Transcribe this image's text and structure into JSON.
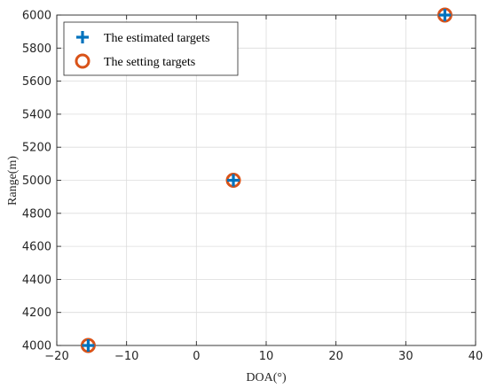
{
  "chart_data": {
    "type": "scatter",
    "title": "",
    "xlabel": "DOA(°)",
    "ylabel": "Range(m)",
    "xlim": [
      -20,
      40
    ],
    "ylim": [
      4000,
      6000
    ],
    "xticks": [
      -20,
      -10,
      0,
      10,
      20,
      30,
      40
    ],
    "xtick_labels": [
      "−20",
      "−10",
      "0",
      "10",
      "20",
      "30",
      "40"
    ],
    "yticks": [
      4000,
      4200,
      4400,
      4600,
      4800,
      5000,
      5200,
      5400,
      5600,
      5800,
      6000
    ],
    "ytick_labels": [
      "4000",
      "4200",
      "4400",
      "4600",
      "4800",
      "5000",
      "5200",
      "5400",
      "5600",
      "5800",
      "6000"
    ],
    "grid": true,
    "legend_position": "top-left",
    "series": [
      {
        "name": "The estimated targets",
        "marker": "plus",
        "color": "#0072BD",
        "x": [
          -15.5,
          5.3,
          35.6
        ],
        "y": [
          4000,
          5000,
          6000
        ]
      },
      {
        "name": "The setting targets",
        "marker": "circle",
        "color": "#D95319",
        "x": [
          -15.5,
          5.3,
          35.6
        ],
        "y": [
          4000,
          5000,
          6000
        ]
      }
    ]
  }
}
